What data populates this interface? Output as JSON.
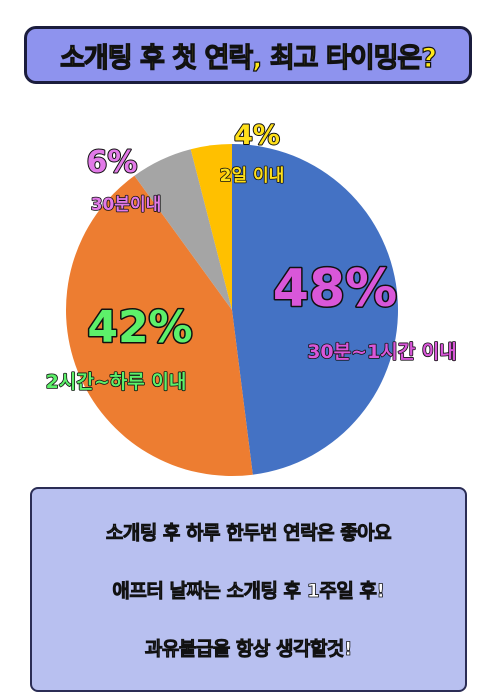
{
  "title": "소개팅 후 첫 연락, 최고 타이밍은?",
  "chart_data": {
    "type": "pie",
    "start_angle_deg": 0,
    "direction": "clockwise",
    "slices": [
      {
        "percent_label": "48%",
        "sublabel": "30분~1시간 이내",
        "value": 48,
        "color": "#4472c4",
        "text_color": "#d957d9"
      },
      {
        "percent_label": "42%",
        "sublabel": "2시간~하루 이내",
        "value": 42,
        "color": "#ed7d31",
        "text_color": "#5df06a"
      },
      {
        "percent_label": "6%",
        "sublabel": "30분이내",
        "value": 6,
        "color": "#a5a5a5",
        "text_color": "#e27ae8"
      },
      {
        "percent_label": "4%",
        "sublabel": "2일 이내",
        "value": 4,
        "color": "#ffc000",
        "text_color": "#ffe01a"
      }
    ]
  },
  "notes": [
    "소개팅 후 하루 한두번 연락은 좋아요",
    "애프터 날짜는 소개팅 후 1주일 후!",
    "과유불급을 항상 생각할것!"
  ]
}
